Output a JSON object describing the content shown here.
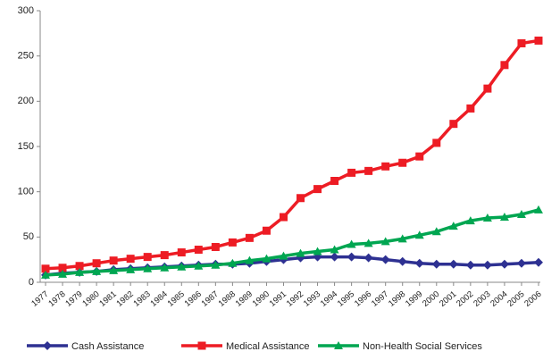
{
  "chart_data": {
    "type": "line",
    "categories": [
      "1977",
      "1978",
      "1979",
      "1980",
      "1981",
      "1982",
      "1983",
      "1984",
      "1985",
      "1986",
      "1987",
      "1988",
      "1989",
      "1990",
      "1991",
      "1992",
      "1993",
      "1994",
      "1995",
      "1996",
      "1997",
      "1998",
      "1999",
      "2000",
      "2001",
      "2002",
      "2003",
      "2004",
      "2005",
      "2006"
    ],
    "series": [
      {
        "name": "Cash Assistance",
        "color": "#2e3192",
        "marker": "diamond",
        "values": [
          8,
          10,
          11,
          12,
          14,
          15,
          16,
          17,
          18,
          19,
          20,
          20,
          21,
          23,
          25,
          27,
          28,
          28,
          28,
          27,
          25,
          23,
          21,
          20,
          20,
          19,
          19,
          20,
          21,
          22
        ]
      },
      {
        "name": "Medical Assistance",
        "color": "#ed1c24",
        "marker": "square",
        "values": [
          15,
          16,
          18,
          21,
          24,
          26,
          28,
          30,
          33,
          36,
          39,
          44,
          49,
          57,
          72,
          93,
          103,
          112,
          121,
          123,
          128,
          132,
          139,
          154,
          175,
          192,
          214,
          240,
          264,
          267
        ]
      },
      {
        "name": "Non-Health Social Services",
        "color": "#00a651",
        "marker": "triangle",
        "values": [
          8,
          9,
          11,
          12,
          13,
          14,
          15,
          16,
          17,
          18,
          19,
          21,
          24,
          26,
          29,
          32,
          34,
          36,
          42,
          43,
          45,
          48,
          52,
          56,
          62,
          68,
          71,
          72,
          75,
          80
        ]
      }
    ],
    "ylim": [
      0,
      300
    ],
    "yticks": [
      0,
      50,
      100,
      150,
      200,
      250,
      300
    ],
    "grid": false,
    "legend": "bottom"
  }
}
